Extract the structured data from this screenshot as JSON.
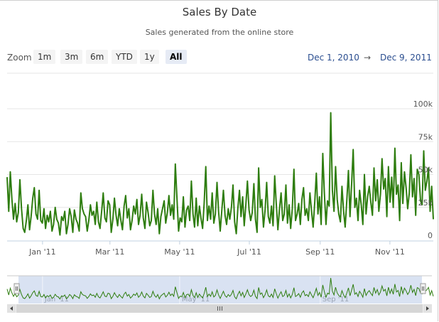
{
  "title": "Sales By Date",
  "subtitle": "Sales generated from the online store",
  "range_selector": {
    "zoom_label": "Zoom",
    "buttons": [
      "1m",
      "3m",
      "6m",
      "YTD",
      "1y",
      "All"
    ],
    "active_button": "All",
    "from": "Dec 1, 2010",
    "arrow": "→",
    "to": "Dec 9, 2011"
  },
  "colors": {
    "series": "#2e7d0f",
    "grid": "#e6e6e6",
    "navigator_mask": "#d9e2f2",
    "scrollbar": "#dddddd"
  },
  "chart_data": {
    "type": "line",
    "title": "Sales By Date",
    "subtitle": "Sales generated from the online store",
    "x_range": [
      "2010-12-01",
      "2011-12-09"
    ],
    "x_tick_labels": [
      "Jan '11",
      "Mar '11",
      "May '11",
      "Jul '11",
      "Sep '11",
      "Nov '11"
    ],
    "y_tick_labels": [
      "0",
      "25k",
      "50k",
      "75k",
      "100k"
    ],
    "ylim": [
      0,
      100000
    ],
    "grid": true,
    "legend": "none",
    "series": [
      {
        "values": [
          48000,
          22000,
          52000,
          31000,
          16000,
          28000,
          14000,
          21000,
          46000,
          24000,
          9000,
          6000,
          15000,
          27000,
          8000,
          18000,
          32000,
          40000,
          20000,
          16000,
          38000,
          15000,
          13000,
          24000,
          9000,
          19000,
          14000,
          22000,
          7000,
          12000,
          25000,
          16000,
          13000,
          4000,
          18000,
          15000,
          22000,
          5000,
          12000,
          24000,
          18000,
          6000,
          23000,
          16000,
          13000,
          7000,
          36000,
          24000,
          20000,
          18000,
          7000,
          15000,
          27000,
          19000,
          22000,
          12000,
          29000,
          14000,
          9000,
          22000,
          36000,
          17000,
          14000,
          30000,
          27000,
          6000,
          16000,
          32000,
          19000,
          11000,
          24000,
          15000,
          8000,
          26000,
          34000,
          17000,
          24000,
          8000,
          15000,
          26000,
          20000,
          31000,
          12000,
          19000,
          35000,
          17000,
          9000,
          29000,
          21000,
          11000,
          15000,
          38000,
          20000,
          12000,
          24000,
          5000,
          18000,
          24000,
          30000,
          13000,
          21000,
          34000,
          19000,
          27000,
          16000,
          58000,
          32000,
          7000,
          17000,
          14000,
          33000,
          10000,
          23000,
          26000,
          15000,
          45000,
          20000,
          10000,
          32000,
          11000,
          26000,
          17000,
          9000,
          28000,
          56000,
          15000,
          26000,
          16000,
          36000,
          13000,
          20000,
          44000,
          22000,
          7000,
          23000,
          38000,
          19000,
          12000,
          24000,
          16000,
          25000,
          42000,
          14000,
          5000,
          24000,
          38000,
          18000,
          33000,
          11000,
          27000,
          45000,
          23000,
          15000,
          21000,
          43000,
          16000,
          6000,
          55000,
          25000,
          31000,
          10000,
          23000,
          44000,
          18000,
          13000,
          26000,
          11000,
          49000,
          28000,
          8000,
          24000,
          36000,
          15000,
          20000,
          42000,
          13000,
          27000,
          9000,
          24000,
          54000,
          15000,
          20000,
          28000,
          12000,
          31000,
          40000,
          19000,
          24000,
          15000,
          36000,
          22000,
          10000,
          29000,
          51000,
          20000,
          33000,
          12000,
          66000,
          36000,
          12000,
          30000,
          26000,
          97000,
          38000,
          22000,
          56000,
          31000,
          20000,
          14000,
          41000,
          22000,
          10000,
          30000,
          53000,
          18000,
          43000,
          69000,
          25000,
          32000,
          15000,
          38000,
          27000,
          12000,
          50000,
          20000,
          33000,
          41000,
          29000,
          19000,
          55000,
          30000,
          46000,
          22000,
          35000,
          62000,
          39000,
          47000,
          18000,
          56000,
          29000,
          48000,
          25000,
          70000,
          35000,
          42000,
          15000,
          59000,
          28000,
          52000,
          40000,
          24000,
          36000,
          65000,
          33000,
          47000,
          19000,
          54000,
          50000,
          30000,
          27000,
          68000,
          38000,
          45000,
          55000,
          22000,
          41000,
          16000
        ]
      }
    ],
    "navigator": {
      "x_labels": [
        "Jan '11",
        "May '11",
        "Sep '11"
      ]
    }
  }
}
